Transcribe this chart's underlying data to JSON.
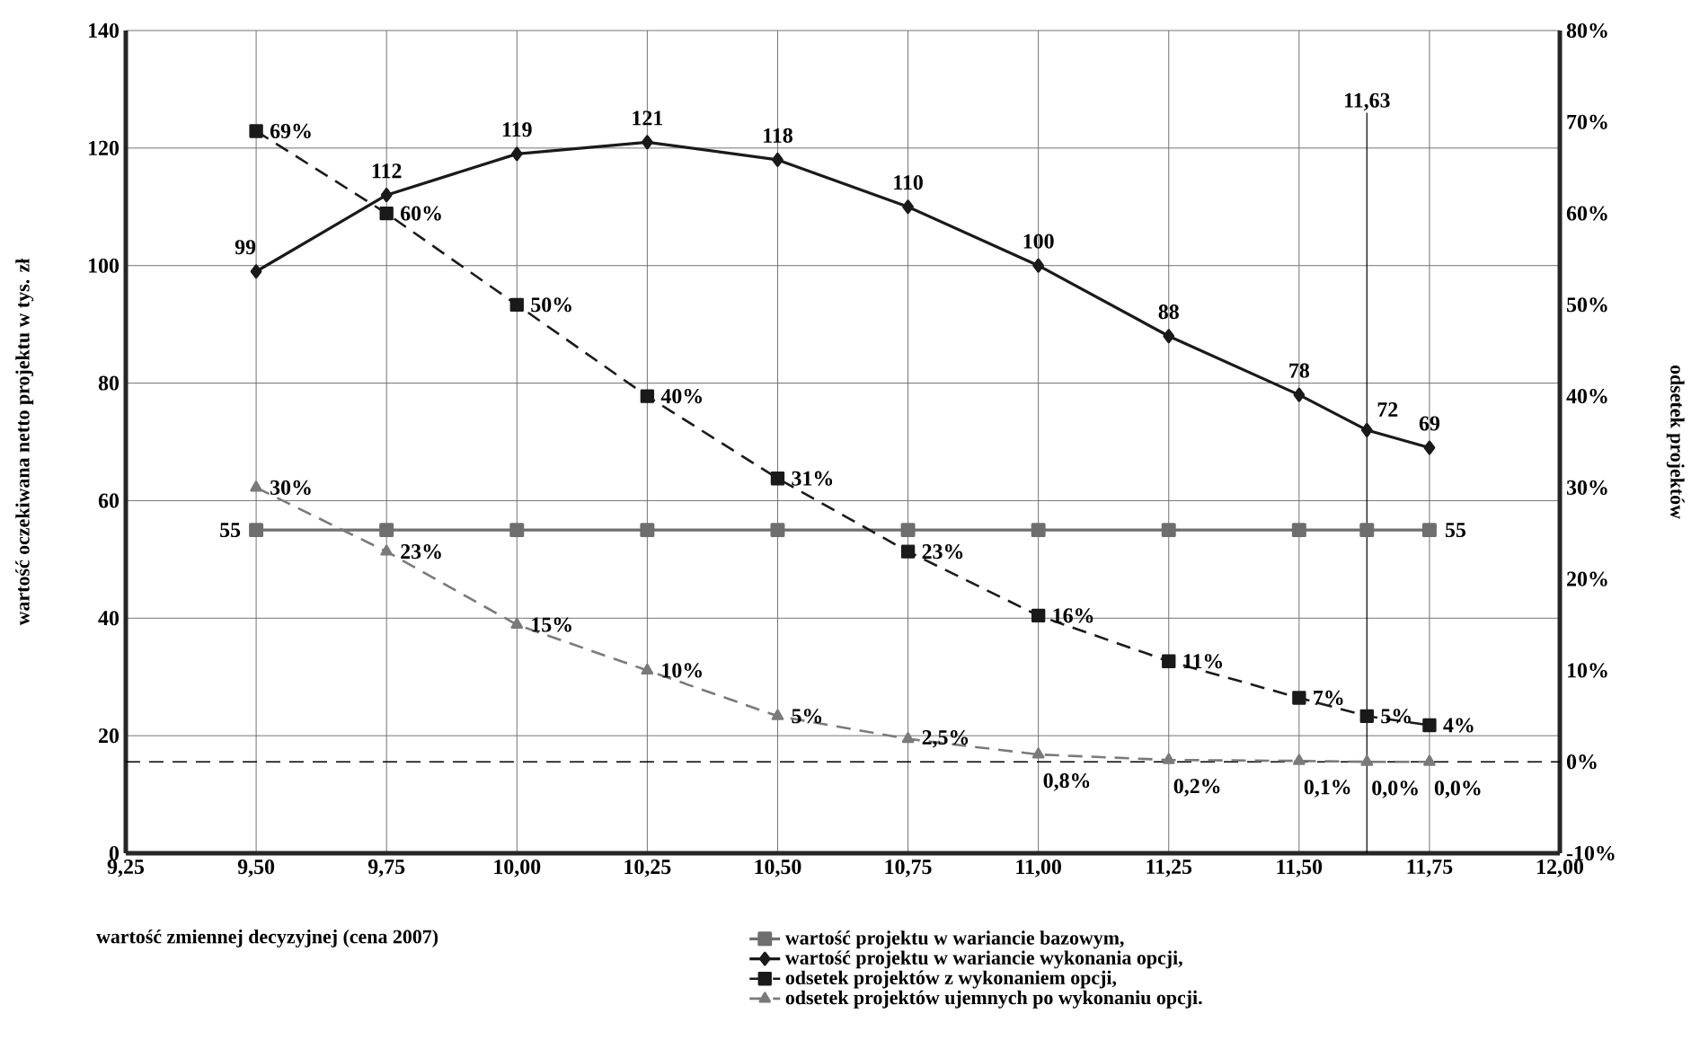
{
  "chart_data": {
    "type": "line",
    "xlabel": "wartość zmiennej decyzyjnej (cena 2007)",
    "ylabel": "wartość oczekiwana netto projektu w tys. zł",
    "y2label": "odsetek projektów",
    "x": [
      9.5,
      9.75,
      10.0,
      10.25,
      10.5,
      10.75,
      11.0,
      11.25,
      11.5,
      11.63,
      11.75
    ],
    "series": [
      {
        "name": "wartość projektu w wariancie bazowym,",
        "color": "#6e6e6e",
        "marker": "square",
        "line_style": "solid",
        "values": [
          55,
          55,
          55,
          55,
          55,
          55,
          55,
          55,
          55,
          55,
          55
        ],
        "value_labels": [
          "55",
          null,
          null,
          null,
          null,
          null,
          null,
          null,
          null,
          null,
          "55"
        ]
      },
      {
        "name": "wartość projektu w wariancie wykonania opcji,",
        "color": "#1a1a1a",
        "marker": "diamond",
        "line_style": "solid",
        "values": [
          99,
          112,
          119,
          121,
          118,
          110,
          100,
          88,
          78,
          72,
          69
        ],
        "value_labels": [
          "99",
          "112",
          "119",
          "121",
          "118",
          "110",
          "100",
          "88",
          "78",
          "72",
          "69"
        ]
      },
      {
        "name": "odsetek projektów z wykonaniem opcji,",
        "color": "#1a1a1a",
        "marker": "square",
        "line_style": "dashed",
        "axis": "y2",
        "values": [
          69,
          60,
          50,
          40,
          31,
          23,
          16,
          11,
          7,
          5,
          4
        ],
        "value_labels": [
          "69%",
          "60%",
          "50%",
          "40%",
          "31%",
          "23%",
          "16%",
          "11%",
          "7%",
          "5%",
          "4%"
        ]
      },
      {
        "name": "odsetek projektów ujemnych po wykonaniu opcji.",
        "color": "#7a7a7a",
        "marker": "triangle",
        "line_style": "dashed",
        "axis": "y2",
        "values": [
          30,
          23,
          15,
          10,
          5,
          2.5,
          0.8,
          0.2,
          0.1,
          0.0,
          0.0
        ],
        "value_labels": [
          "30%",
          "23%",
          "15%",
          "10%",
          "5%",
          "2,5%",
          "0,8%",
          "0,2%",
          "0,1%",
          "0,0%",
          "0,0%"
        ]
      }
    ],
    "xlim": [
      9.25,
      12.0
    ],
    "xticks": [
      {
        "value": 9.25,
        "label": "9,25"
      },
      {
        "value": 9.5,
        "label": "9,50"
      },
      {
        "value": 9.75,
        "label": "9,75"
      },
      {
        "value": 10.0,
        "label": "10,00"
      },
      {
        "value": 10.25,
        "label": "10,25"
      },
      {
        "value": 10.5,
        "label": "10,50"
      },
      {
        "value": 10.75,
        "label": "10,75"
      },
      {
        "value": 11.0,
        "label": "11,00"
      },
      {
        "value": 11.25,
        "label": "11,25"
      },
      {
        "value": 11.5,
        "label": "11,50"
      },
      {
        "value": 11.75,
        "label": "11,75"
      },
      {
        "value": 12.0,
        "label": "12,00"
      }
    ],
    "ylim": [
      0,
      140
    ],
    "yticks": [
      0,
      20,
      40,
      60,
      80,
      100,
      120,
      140
    ],
    "y2lim": [
      -10,
      80
    ],
    "y2ticks": [
      {
        "value": -10,
        "label": "-10%"
      },
      {
        "value": 0,
        "label": "0%"
      },
      {
        "value": 10,
        "label": "10%"
      },
      {
        "value": 20,
        "label": "20%"
      },
      {
        "value": 30,
        "label": "30%"
      },
      {
        "value": 40,
        "label": "40%"
      },
      {
        "value": 50,
        "label": "50%"
      },
      {
        "value": 60,
        "label": "60%"
      },
      {
        "value": 70,
        "label": "70%"
      },
      {
        "value": 80,
        "label": "80%"
      }
    ],
    "ref_lines": [
      {
        "axis": "x",
        "value": 11.63,
        "label": "11,63"
      },
      {
        "axis": "y2",
        "value": 0,
        "line_style": "dashed"
      }
    ],
    "grid": true,
    "legend": "bottom"
  }
}
